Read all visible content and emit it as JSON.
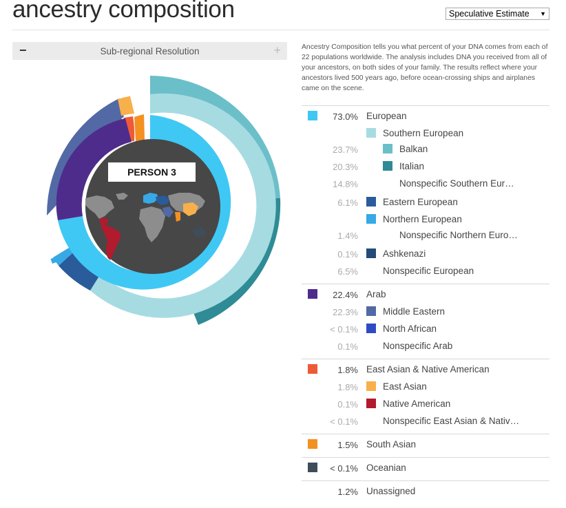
{
  "header": {
    "title": "ancestry composition",
    "estimate_select": "Speculative Estimate"
  },
  "resolution": {
    "minus": "−",
    "label": "Sub-regional Resolution",
    "plus": "+"
  },
  "description": "Ancestry Composition tells you what percent of your DNA comes from each of 22 populations worldwide. The analysis includes DNA you received from all of your ancestors, on both sides of your family. The results reflect where your ancestors lived 500 years ago, before ocean-crossing ships and airplanes came on the scene.",
  "chart": {
    "person_label": "PERSON 3",
    "icon": "world-map-icon"
  },
  "colors": {
    "european": "#3fc8f4",
    "southern_european": "#a6dbe2",
    "balkan": "#6bbfc9",
    "italian": "#2f8b95",
    "eastern_european": "#2a5b9b",
    "northern_european": "#36a9e6",
    "ashkenazi": "#244a7a",
    "arab": "#4e2c8c",
    "middle_eastern": "#5369a6",
    "north_african": "#2f4bc3",
    "east_asian_native_american": "#ef5a36",
    "east_asian": "#f7b04b",
    "native_american": "#b21a2d",
    "south_asian": "#f39121",
    "oceanian": "#3e4d58",
    "center": "#474747",
    "map": "#8d8d8d"
  },
  "breakdown": {
    "european": {
      "pct": "73.0%",
      "label": "European",
      "southern": {
        "label": "Southern European"
      },
      "balkan": {
        "pct": "23.7%",
        "label": "Balkan"
      },
      "italian": {
        "pct": "20.3%",
        "label": "Italian"
      },
      "nonspec_southern": {
        "pct": "14.8%",
        "label": "Nonspecific Southern Eur…"
      },
      "eastern": {
        "pct": "6.1%",
        "label": "Eastern European"
      },
      "northern": {
        "label": "Northern European"
      },
      "nonspec_northern": {
        "pct": "1.4%",
        "label": "Nonspecific Northern Euro…"
      },
      "ashkenazi": {
        "pct": "0.1%",
        "label": "Ashkenazi"
      },
      "nonspec_european": {
        "pct": "6.5%",
        "label": "Nonspecific European"
      }
    },
    "arab": {
      "pct": "22.4%",
      "label": "Arab",
      "middle_eastern": {
        "pct": "22.3%",
        "label": "Middle Eastern"
      },
      "north_african": {
        "pct": "< 0.1%",
        "label": "North African"
      },
      "nonspec_arab": {
        "pct": "0.1%",
        "label": "Nonspecific Arab"
      }
    },
    "east_asian_na": {
      "pct": "1.8%",
      "label": "East Asian & Native American",
      "east_asian": {
        "pct": "1.8%",
        "label": "East Asian"
      },
      "native_american": {
        "pct": "0.1%",
        "label": "Native American"
      },
      "nonspec": {
        "pct": "< 0.1%",
        "label": "Nonspecific East Asian & Nativ…"
      }
    },
    "south_asian": {
      "pct": "1.5%",
      "label": "South Asian"
    },
    "oceanian": {
      "pct": "< 0.1%",
      "label": "Oceanian"
    },
    "unassigned": {
      "pct": "1.2%",
      "label": "Unassigned"
    }
  }
}
